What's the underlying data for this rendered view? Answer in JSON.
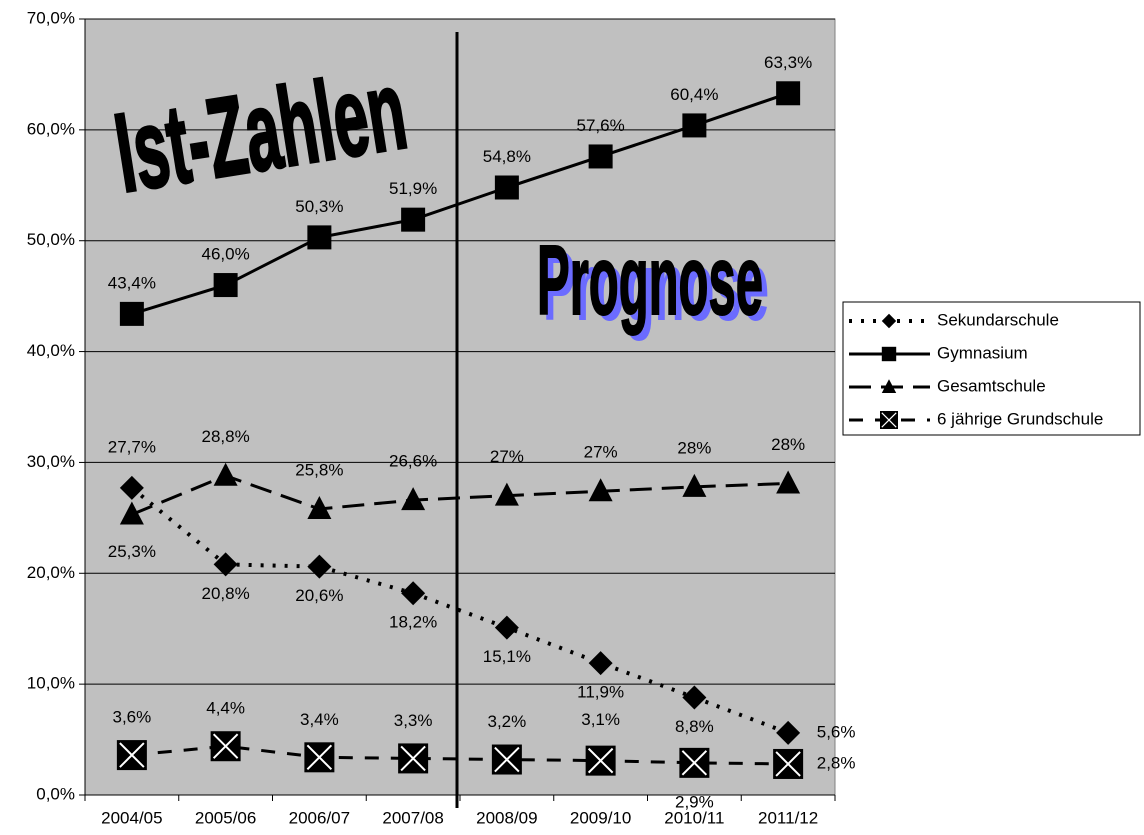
{
  "chart_data": {
    "type": "line",
    "annotations": [
      "Ist-Zahlen",
      "Prognose"
    ],
    "categories": [
      "2004/05",
      "2005/06",
      "2006/07",
      "2007/08",
      "2008/09",
      "2009/10",
      "2010/11",
      "2011/12"
    ],
    "series": [
      {
        "name": "Sekundarschule",
        "color": "#000000",
        "marker": "diamond",
        "values": [
          27.7,
          20.8,
          20.6,
          18.2,
          15.1,
          11.9,
          8.8,
          5.6
        ],
        "value_labels": [
          "27,7%",
          "20,8%",
          "20,6%",
          "18,2%",
          "15,1%",
          "11,9%",
          "8,8%",
          "5,6%"
        ]
      },
      {
        "name": "Gymnasium",
        "color": "#000000",
        "marker": "square",
        "values": [
          43.4,
          46.0,
          50.3,
          51.9,
          54.8,
          57.6,
          60.4,
          63.3
        ],
        "value_labels": [
          "43,4%",
          "46,0%",
          "50,3%",
          "51,9%",
          "54,8%",
          "57,6%",
          "60,4%",
          "63,3%"
        ]
      },
      {
        "name": "Gesamtschule",
        "color": "#000000",
        "marker": "triangle",
        "values": [
          25.3,
          28.8,
          25.8,
          26.6,
          27.0,
          27.4,
          27.8,
          28.1
        ],
        "value_labels": [
          "25,3%",
          "28,8%",
          "25,8%",
          "26,6%",
          "27%",
          "27%",
          "28%",
          "28%"
        ]
      },
      {
        "name": "6 jährige Grundschule",
        "color": "#000000",
        "marker": "xsquare",
        "values": [
          3.6,
          4.4,
          3.4,
          3.3,
          3.2,
          3.1,
          2.9,
          2.8
        ],
        "value_labels": [
          "3,6%",
          "4,4%",
          "3,4%",
          "3,3%",
          "3,2%",
          "3,1%",
          "2,9%",
          "2,8%"
        ]
      }
    ],
    "ylim": [
      0,
      70
    ],
    "yticks": [
      {
        "value": 0,
        "label": "0,0%"
      },
      {
        "value": 10,
        "label": "10,0%"
      },
      {
        "value": 20,
        "label": "20,0%"
      },
      {
        "value": 30,
        "label": "30,0%"
      },
      {
        "value": 40,
        "label": "40,0%"
      },
      {
        "value": 50,
        "label": "50,0%"
      },
      {
        "value": 60,
        "label": "60,0%"
      },
      {
        "value": 70,
        "label": "70,0%"
      }
    ],
    "grid": true,
    "legend": "right",
    "plot_background": "#c0c0c0"
  }
}
